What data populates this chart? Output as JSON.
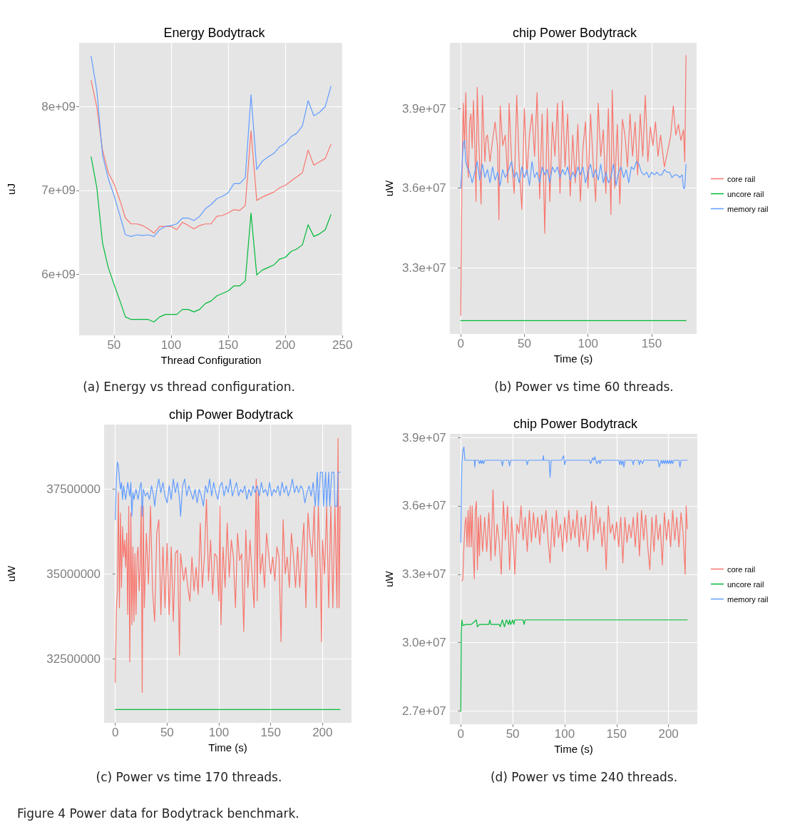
{
  "chart_data": [
    {
      "type": "line",
      "title": "Energy Bodytrack",
      "xlabel": "Thread Configuration",
      "ylabel": "uJ",
      "xlim": [
        19.5,
        250.5
      ],
      "xticks": [
        50,
        100,
        150,
        200,
        250
      ],
      "ylim": [
        5270000000.0,
        8760000000.0
      ],
      "yticks": [
        {
          "value": 6000000000.0,
          "label": "6e+09"
        },
        {
          "value": 7000000000.0,
          "label": "7e+09"
        },
        {
          "value": 8000000000.0,
          "label": "8e+09"
        }
      ],
      "grid": true,
      "legend": false,
      "annotations": [
        "(a)  Energy vs thread configuration."
      ],
      "series": [
        {
          "color": "#f8766d",
          "x": [
            30,
            35,
            40,
            45,
            50,
            55,
            60,
            65,
            70,
            75,
            80,
            85,
            90,
            95,
            100,
            105,
            110,
            115,
            120,
            125,
            130,
            135,
            140,
            145,
            150,
            155,
            160,
            165,
            170,
            175,
            180,
            185,
            190,
            195,
            200,
            205,
            210,
            215,
            220,
            225,
            230,
            235,
            240
          ],
          "values": [
            8310000000.0,
            7990000000.0,
            7480000000.0,
            7210000000.0,
            7080000000.0,
            6890000000.0,
            6670000000.0,
            6600000000.0,
            6600000000.0,
            6580000000.0,
            6540000000.0,
            6490000000.0,
            6570000000.0,
            6570000000.0,
            6570000000.0,
            6530000000.0,
            6620000000.0,
            6580000000.0,
            6540000000.0,
            6580000000.0,
            6600000000.0,
            6600000000.0,
            6690000000.0,
            6700000000.0,
            6730000000.0,
            6770000000.0,
            6760000000.0,
            6820000000.0,
            7710000000.0,
            6880000000.0,
            6920000000.0,
            6950000000.0,
            6980000000.0,
            7030000000.0,
            7060000000.0,
            7110000000.0,
            7160000000.0,
            7210000000.0,
            7480000000.0,
            7300000000.0,
            7340000000.0,
            7380000000.0,
            7550000000.0
          ]
        },
        {
          "color": "#00ba38",
          "x": [
            30,
            35,
            40,
            45,
            50,
            55,
            60,
            65,
            70,
            75,
            80,
            85,
            90,
            95,
            100,
            105,
            110,
            115,
            120,
            125,
            130,
            135,
            140,
            145,
            150,
            155,
            160,
            165,
            170,
            175,
            180,
            185,
            190,
            195,
            200,
            205,
            210,
            215,
            220,
            225,
            230,
            235,
            240
          ],
          "values": [
            7400000000.0,
            7030000000.0,
            6370000000.0,
            6080000000.0,
            5880000000.0,
            5690000000.0,
            5490000000.0,
            5460000000.0,
            5460000000.0,
            5460000000.0,
            5460000000.0,
            5430000000.0,
            5490000000.0,
            5520000000.0,
            5520000000.0,
            5520000000.0,
            5580000000.0,
            5580000000.0,
            5550000000.0,
            5580000000.0,
            5650000000.0,
            5680000000.0,
            5740000000.0,
            5770000000.0,
            5800000000.0,
            5860000000.0,
            5860000000.0,
            5920000000.0,
            6730000000.0,
            5990000000.0,
            6050000000.0,
            6080000000.0,
            6110000000.0,
            6180000000.0,
            6200000000.0,
            6270000000.0,
            6300000000.0,
            6350000000.0,
            6590000000.0,
            6450000000.0,
            6480000000.0,
            6530000000.0,
            6710000000.0
          ]
        },
        {
          "color": "#619cff",
          "x": [
            30,
            35,
            40,
            45,
            50,
            55,
            60,
            65,
            70,
            75,
            80,
            85,
            90,
            95,
            100,
            105,
            110,
            115,
            120,
            125,
            130,
            135,
            140,
            145,
            150,
            155,
            160,
            165,
            170,
            175,
            180,
            185,
            190,
            195,
            200,
            205,
            210,
            215,
            220,
            225,
            230,
            235,
            240
          ],
          "values": [
            8600000000.0,
            8190000000.0,
            7420000000.0,
            7140000000.0,
            6940000000.0,
            6710000000.0,
            6470000000.0,
            6450000000.0,
            6470000000.0,
            6460000000.0,
            6470000000.0,
            6450000000.0,
            6530000000.0,
            6570000000.0,
            6580000000.0,
            6600000000.0,
            6670000000.0,
            6670000000.0,
            6640000000.0,
            6690000000.0,
            6780000000.0,
            6830000000.0,
            6900000000.0,
            6930000000.0,
            6970000000.0,
            7080000000.0,
            7080000000.0,
            7150000000.0,
            8140000000.0,
            7250000000.0,
            7350000000.0,
            7400000000.0,
            7440000000.0,
            7520000000.0,
            7560000000.0,
            7640000000.0,
            7680000000.0,
            7770000000.0,
            8070000000.0,
            7890000000.0,
            7930000000.0,
            8000000000.0,
            8240000000.0
          ]
        }
      ]
    },
    {
      "type": "line",
      "title": "chip Power Bodytrack",
      "xlabel": "Time (s)",
      "ylabel": "uW",
      "xlim": [
        -8.6,
        185.3
      ],
      "xticks": [
        0,
        50,
        100,
        150
      ],
      "ylim": [
        30500000.0,
        41480000.0
      ],
      "yticks": [
        {
          "value": 33000000.0,
          "label": "3.3e+07"
        },
        {
          "value": 36000000.0,
          "label": "3.6e+07"
        },
        {
          "value": 39000000.0,
          "label": "3.9e+07"
        }
      ],
      "grid": true,
      "legend": "right",
      "annotations": [
        "(b)  Power vs time 60 threads."
      ],
      "series": [
        {
          "name": "core rail",
          "color": "#f8766d",
          "x": [
            0,
            1,
            2,
            3,
            4,
            5,
            6,
            7,
            8,
            9,
            10,
            11,
            12,
            13,
            14,
            16,
            17,
            19,
            20,
            21,
            23,
            25,
            27,
            29,
            30,
            31,
            33,
            35,
            37,
            38,
            40,
            42,
            44,
            46,
            48,
            50,
            52,
            54,
            56,
            58,
            60,
            62,
            64,
            66,
            68,
            70,
            72,
            74,
            76,
            78,
            80,
            82,
            84,
            86,
            88,
            90,
            92,
            94,
            96,
            98,
            100,
            102,
            104,
            106,
            108,
            110,
            112,
            114,
            116,
            118,
            119,
            121,
            123,
            125,
            127,
            129,
            131,
            133,
            135,
            137,
            139,
            141,
            143,
            145,
            147,
            149,
            151,
            153,
            155,
            157,
            160,
            163,
            165,
            167,
            169,
            171,
            173,
            175,
            176,
            177
          ],
          "values": [
            31200000.0,
            36500000.0,
            39200000.0,
            37500000.0,
            39600000.0,
            37200000.0,
            36400000.0,
            38500000.0,
            38800000.0,
            37500000.0,
            39300000.0,
            37800000.0,
            35500000.0,
            39800000.0,
            38000000.0,
            35400000.0,
            39500000.0,
            37000000.0,
            37900000.0,
            38000000.0,
            37000000.0,
            37800000.0,
            38500000.0,
            37500000.0,
            34800000.0,
            39100000.0,
            37600000.0,
            38000000.0,
            36200000.0,
            39200000.0,
            37000000.0,
            35800000.0,
            39500000.0,
            36800000.0,
            35200000.0,
            39000000.0,
            36500000.0,
            38000000.0,
            38800000.0,
            37200000.0,
            39600000.0,
            35600000.0,
            38800000.0,
            34300000.0,
            39000000.0,
            35500000.0,
            38500000.0,
            37200000.0,
            39200000.0,
            35800000.0,
            39300000.0,
            36800000.0,
            38800000.0,
            35700000.0,
            38000000.0,
            36200000.0,
            38400000.0,
            35500000.0,
            37500000.0,
            38500000.0,
            36000000.0,
            38800000.0,
            37000000.0,
            35500000.0,
            39200000.0,
            37200000.0,
            38200000.0,
            35800000.0,
            39000000.0,
            35000000.0,
            39700000.0,
            36000000.0,
            38400000.0,
            35400000.0,
            38600000.0,
            38000000.0,
            36800000.0,
            38800000.0,
            37200000.0,
            38500000.0,
            36500000.0,
            38800000.0,
            37200000.0,
            39500000.0,
            37000000.0,
            38300000.0,
            37600000.0,
            38500000.0,
            37200000.0,
            38000000.0,
            36800000.0,
            37500000.0,
            38000000.0,
            39100000.0,
            38000000.0,
            38400000.0,
            37800000.0,
            38200000.0,
            37000000.0,
            41000000.0
          ]
        },
        {
          "name": "uncore rail",
          "color": "#00ba38",
          "x": [
            0,
            177
          ],
          "values": [
            31000000.0,
            31000000.0
          ]
        },
        {
          "name": "memory rail",
          "color": "#619cff",
          "x": [
            0,
            2,
            3,
            4,
            5,
            7,
            9,
            11,
            13,
            15,
            17,
            19,
            21,
            23,
            25,
            27,
            29,
            31,
            33,
            35,
            37,
            40,
            42,
            44,
            46,
            48,
            50,
            52,
            54,
            56,
            58,
            60,
            62,
            64,
            66,
            68,
            70,
            72,
            74,
            76,
            78,
            80,
            82,
            84,
            86,
            88,
            90,
            92,
            94,
            96,
            98,
            100,
            102,
            104,
            106,
            108,
            110,
            112,
            114,
            116,
            118,
            120,
            122,
            124,
            126,
            128,
            130,
            132,
            134,
            136,
            138,
            140,
            142,
            144,
            146,
            148,
            150,
            152,
            154,
            156,
            158,
            160,
            162,
            164,
            166,
            168,
            170,
            172,
            174,
            175,
            176,
            177
          ],
          "values": [
            36000000.0,
            37700000.0,
            37800000.0,
            37000000.0,
            36800000.0,
            36600000.0,
            36200000.0,
            36600000.0,
            37000000.0,
            36300000.0,
            36900000.0,
            36400000.0,
            36700000.0,
            36200000.0,
            36800000.0,
            36300000.0,
            36600000.0,
            36100000.0,
            36700000.0,
            36400000.0,
            36600000.0,
            37000000.0,
            36400000.0,
            36600000.0,
            36200000.0,
            36800000.0,
            36400000.0,
            36700000.0,
            36100000.0,
            37000000.0,
            36400000.0,
            36600000.0,
            36200000.0,
            36800000.0,
            36500000.0,
            36700000.0,
            36200000.0,
            36800000.0,
            36600000.0,
            36800000.0,
            36400000.0,
            36700000.0,
            36500000.0,
            36800000.0,
            36300000.0,
            36600000.0,
            36400000.0,
            36800000.0,
            36500000.0,
            36800000.0,
            36200000.0,
            36600000.0,
            36900000.0,
            36400000.0,
            36700000.0,
            36300000.0,
            36900000.0,
            36200000.0,
            36600000.0,
            36200000.0,
            36400000.0,
            36900000.0,
            36100000.0,
            36600000.0,
            36800000.0,
            36400000.0,
            36700000.0,
            36200000.0,
            36800000.0,
            36700000.0,
            37000000.0,
            36900000.0,
            36600000.0,
            36500000.0,
            36600000.0,
            36400000.0,
            36600000.0,
            36500000.0,
            36600000.0,
            36500000.0,
            36500000.0,
            36700000.0,
            36600000.0,
            36600000.0,
            36400000.0,
            36500000.0,
            36500000.0,
            36400000.0,
            36500000.0,
            36000000.0,
            36000000.0,
            36900000.0
          ]
        }
      ]
    },
    {
      "type": "line",
      "title": "chip Power Bodytrack",
      "xlabel": "Time (s)",
      "ylabel": "uW",
      "xlim": [
        -10.8,
        228
      ],
      "xticks": [
        0,
        50,
        100,
        150,
        200
      ],
      "ylim": [
        30607000.0,
        39407000.0
      ],
      "yticks": [
        32500000,
        35000000,
        37500000
      ],
      "grid": true,
      "legend": false,
      "annotations": [
        "(c)  Power vs time 170 threads."
      ],
      "series": [
        {
          "color": "#f8766d",
          "x": [
            0,
            1,
            2,
            3,
            4,
            5,
            6,
            7,
            8,
            9,
            10,
            11,
            12,
            13,
            14,
            15,
            16,
            17,
            18,
            19,
            20,
            21,
            22,
            23,
            24,
            25,
            26,
            27,
            28,
            30,
            32,
            34,
            36,
            38,
            40,
            42,
            44,
            46,
            48,
            50,
            52,
            54,
            56,
            58,
            60,
            62,
            63,
            66,
            68,
            70,
            72,
            74,
            76,
            78,
            80,
            82,
            84,
            86,
            88,
            90,
            92,
            94,
            96,
            98,
            100,
            101,
            102,
            104,
            106,
            108,
            110,
            112,
            114,
            116,
            118,
            120,
            122,
            124,
            126,
            128,
            130,
            132,
            134,
            136,
            137,
            138,
            140,
            142,
            144,
            146,
            148,
            150,
            152,
            154,
            156,
            158,
            160,
            162,
            164,
            166,
            168,
            170,
            172,
            174,
            176,
            178,
            180,
            182,
            184,
            186,
            188,
            190,
            192,
            194,
            196,
            198,
            199,
            200,
            202,
            204,
            206,
            208,
            210,
            212,
            214,
            215,
            216,
            217
          ],
          "values": [
            31800000.0,
            33900000.0,
            34500000.0,
            37400000.0,
            34000000.0,
            36800000.0,
            34600000.0,
            36400000.0,
            35500000.0,
            36000000.0,
            35200000.0,
            36200000.0,
            33800000.0,
            37000000.0,
            32400000.0,
            36800000.0,
            33500000.0,
            35800000.0,
            33600000.0,
            35600000.0,
            33800000.0,
            35500000.0,
            35800000.0,
            34500000.0,
            35200000.0,
            37000000.0,
            31500000.0,
            37000000.0,
            34000000.0,
            36200000.0,
            34700000.0,
            37000000.0,
            34500000.0,
            33600000.0,
            36200000.0,
            36600000.0,
            33800000.0,
            35800000.0,
            34000000.0,
            35900000.0,
            33800000.0,
            35800000.0,
            33600000.0,
            35600000.0,
            35700000.0,
            32600000.0,
            35600000.0,
            34800000.0,
            35200000.0,
            34600000.0,
            34200000.0,
            35500000.0,
            34500000.0,
            35200000.0,
            34400000.0,
            36500000.0,
            34600000.0,
            35500000.0,
            37200000.0,
            34800000.0,
            36000000.0,
            34400000.0,
            35600000.0,
            35500000.0,
            34200000.0,
            37000000.0,
            33500000.0,
            35800000.0,
            34600000.0,
            36500000.0,
            34900000.0,
            36000000.0,
            35500000.0,
            34000000.0,
            36200000.0,
            35400000.0,
            35600000.0,
            33300000.0,
            36300000.0,
            34600000.0,
            36000000.0,
            35000000.0,
            34000000.0,
            37800000.0,
            34200000.0,
            37500000.0,
            35000000.0,
            35600000.0,
            34600000.0,
            36200000.0,
            35600000.0,
            35000000.0,
            35500000.0,
            34800000.0,
            35800000.0,
            35500000.0,
            33000000.0,
            36600000.0,
            35000000.0,
            35500000.0,
            34600000.0,
            36200000.0,
            35500000.0,
            34600000.0,
            35800000.0,
            34600000.0,
            35600000.0,
            36500000.0,
            34000000.0,
            36800000.0,
            36000000.0,
            35500000.0,
            37000000.0,
            34000000.0,
            37000000.0,
            35000000.0,
            33000000.0,
            36000000.0,
            35000000.0,
            37000000.0,
            34000000.0,
            37000000.0,
            34000000.0,
            37000000.0,
            34000000.0,
            39000000.0,
            34000000.0,
            37000000.0
          ]
        },
        {
          "color": "#00ba38",
          "x": [
            0,
            217
          ],
          "values": [
            31000000.0,
            31000000.0
          ]
        },
        {
          "color": "#619cff",
          "x": [
            0,
            1,
            2,
            3,
            4,
            5,
            6,
            7,
            8,
            10,
            12,
            14,
            15,
            16,
            17,
            18,
            20,
            22,
            24,
            25,
            26,
            27,
            29,
            31,
            33,
            35,
            37,
            38,
            40,
            42,
            44,
            46,
            48,
            50,
            52,
            54,
            56,
            58,
            60,
            62,
            63,
            65,
            67,
            69,
            71,
            73,
            75,
            77,
            79,
            81,
            83,
            85,
            87,
            89,
            91,
            93,
            95,
            97,
            99,
            101,
            103,
            105,
            107,
            109,
            111,
            113,
            115,
            117,
            119,
            121,
            123,
            125,
            127,
            129,
            131,
            133,
            135,
            137,
            139,
            141,
            143,
            145,
            147,
            149,
            151,
            153,
            155,
            157,
            159,
            161,
            163,
            165,
            167,
            169,
            171,
            173,
            175,
            177,
            179,
            181,
            183,
            185,
            187,
            189,
            191,
            193,
            195,
            196,
            198,
            200,
            201,
            203,
            204,
            206,
            207,
            209,
            211,
            212,
            214,
            215,
            217
          ],
          "values": [
            36600000.0,
            37800000.0,
            38300000.0,
            38200000.0,
            37800000.0,
            37500000.0,
            37700000.0,
            37200000.0,
            37600000.0,
            37200000.0,
            37700000.0,
            37300000.0,
            37700000.0,
            36700000.0,
            37400000.0,
            37200000.0,
            37500000.0,
            37200000.0,
            37600000.0,
            37700000.0,
            36700000.0,
            37500000.0,
            37300000.0,
            37400000.0,
            37200000.0,
            37600000.0,
            37300000.0,
            37000000.0,
            37500000.0,
            37800000.0,
            37400000.0,
            37700000.0,
            37300000.0,
            37100000.0,
            37600000.0,
            37200000.0,
            37800000.0,
            37400000.0,
            37700000.0,
            37200000.0,
            36700000.0,
            37600000.0,
            37800000.0,
            37300000.0,
            37600000.0,
            37400000.0,
            37200000.0,
            37500000.0,
            37100000.0,
            37500000.0,
            37300000.0,
            37000000.0,
            37600000.0,
            37400000.0,
            37800000.0,
            37300000.0,
            37700000.0,
            37400000.0,
            37200000.0,
            37600000.0,
            37700000.0,
            37300000.0,
            37600000.0,
            37400000.0,
            37800000.0,
            37300000.0,
            37500000.0,
            37700000.0,
            37300000.0,
            37500000.0,
            37400000.0,
            37600000.0,
            37200000.0,
            37500000.0,
            37300000.0,
            37600000.0,
            37400000.0,
            37600000.0,
            37300000.0,
            37700000.0,
            37400000.0,
            37500000.0,
            37300000.0,
            37700000.0,
            37300000.0,
            37500000.0,
            37400000.0,
            37600000.0,
            37300000.0,
            37700000.0,
            37400000.0,
            37600000.0,
            37300000.0,
            37500000.0,
            37800000.0,
            37400000.0,
            37600000.0,
            37400000.0,
            37600000.0,
            37500000.0,
            37100000.0,
            37400000.0,
            37600000.0,
            37300000.0,
            37700000.0,
            37000000.0,
            38000000.0,
            37000000.0,
            38000000.0,
            38000000.0,
            37000000.0,
            38000000.0,
            37000000.0,
            38000000.0,
            37000000.0,
            38000000.0,
            38000000.0,
            37000000.0,
            37000000.0,
            38000000.0,
            38000000.0
          ]
        }
      ]
    },
    {
      "type": "line",
      "title": "chip Power Bodytrack",
      "xlabel": "Time (s)",
      "ylabel": "uW",
      "xlim": [
        -10.6,
        227.7
      ],
      "xticks": [
        0,
        50,
        100,
        150,
        200
      ],
      "ylim": [
        26426000.0,
        39157000.0
      ],
      "yticks": [
        {
          "value": 27000000.0,
          "label": "2.7e+07"
        },
        {
          "value": 30000000.0,
          "label": "3.0e+07"
        },
        {
          "value": 33000000.0,
          "label": "3.3e+07"
        },
        {
          "value": 36000000.0,
          "label": "3.6e+07"
        },
        {
          "value": 39000000.0,
          "label": "3.9e+07"
        }
      ],
      "grid": true,
      "legend": "right",
      "annotations": [
        "(d)  Power vs time 240 threads.",
        "Figure 4  Power data for Bodytrack benchmark."
      ],
      "series": [
        {
          "name": "core rail",
          "color": "#f8766d",
          "x": [
            1,
            2,
            3,
            4,
            5,
            6,
            7,
            8,
            9,
            10,
            11,
            12,
            13,
            14,
            15,
            16,
            17,
            18,
            19,
            21,
            23,
            25,
            27,
            29,
            31,
            33,
            35,
            37,
            39,
            41,
            43,
            45,
            47,
            49,
            51,
            52,
            54,
            56,
            58,
            60,
            62,
            64,
            66,
            68,
            70,
            72,
            74,
            76,
            78,
            80,
            82,
            84,
            86,
            88,
            90,
            92,
            94,
            96,
            98,
            100,
            102,
            104,
            106,
            108,
            110,
            112,
            114,
            116,
            118,
            120,
            122,
            124,
            126,
            128,
            130,
            132,
            134,
            136,
            138,
            140,
            142,
            144,
            146,
            148,
            150,
            152,
            154,
            156,
            158,
            160,
            162,
            164,
            166,
            168,
            170,
            172,
            174,
            176,
            178,
            180,
            182,
            184,
            186,
            188,
            190,
            192,
            194,
            196,
            198,
            200,
            202,
            204,
            206,
            208,
            210,
            212,
            214,
            216,
            217,
            218
          ],
          "values": [
            32700000.0,
            32800000.0,
            34200000.0,
            35200000.0,
            35500000.0,
            34200000.0,
            35800000.0,
            34200000.0,
            36000000.0,
            34200000.0,
            36000000.0,
            34000000.0,
            32800000.0,
            35800000.0,
            36200000.0,
            33200000.0,
            35500000.0,
            33800000.0,
            35600000.0,
            34000000.0,
            35500000.0,
            34000000.0,
            35700000.0,
            33600000.0,
            36700000.0,
            33800000.0,
            35200000.0,
            34400000.0,
            33000000.0,
            36200000.0,
            34500000.0,
            36000000.0,
            33200000.0,
            35500000.0,
            34000000.0,
            33000000.0,
            35200000.0,
            34800000.0,
            36000000.0,
            34500000.0,
            35500000.0,
            34000000.0,
            35800000.0,
            34400000.0,
            35700000.0,
            34600000.0,
            35500000.0,
            34300000.0,
            35600000.0,
            34800000.0,
            35800000.0,
            34500000.0,
            33500000.0,
            35500000.0,
            34200000.0,
            35800000.0,
            34600000.0,
            35200000.0,
            34000000.0,
            35500000.0,
            34400000.0,
            35800000.0,
            34500000.0,
            35400000.0,
            34600000.0,
            35800000.0,
            34200000.0,
            35500000.0,
            34500000.0,
            35600000.0,
            34000000.0,
            35000000.0,
            36200000.0,
            34500000.0,
            36000000.0,
            34800000.0,
            35500000.0,
            34200000.0,
            35300000.0,
            33200000.0,
            36000000.0,
            34800000.0,
            35200000.0,
            34500000.0,
            35300000.0,
            34200000.0,
            35500000.0,
            33500000.0,
            35500000.0,
            34400000.0,
            35200000.0,
            34600000.0,
            35500000.0,
            34200000.0,
            35700000.0,
            33800000.0,
            35800000.0,
            34500000.0,
            35600000.0,
            34200000.0,
            33200000.0,
            35500000.0,
            34000000.0,
            35600000.0,
            34500000.0,
            35200000.0,
            33400000.0,
            35700000.0,
            34500000.0,
            35400000.0,
            34200000.0,
            35800000.0,
            34500000.0,
            35500000.0,
            34200000.0,
            35700000.0,
            34800000.0,
            33000000.0,
            36000000.0,
            35000000.0
          ]
        },
        {
          "name": "uncore rail",
          "color": "#00ba38",
          "x": [
            0,
            0.5,
            1,
            2,
            5,
            10,
            15,
            16,
            18,
            27,
            28,
            29,
            37,
            38,
            40,
            42,
            44,
            46,
            47,
            48,
            50,
            51,
            52,
            60,
            61,
            62,
            218
          ],
          "values": [
            27000000.0,
            30400000.0,
            31000000.0,
            30750000.0,
            30800000.0,
            30800000.0,
            31000000.0,
            30700000.0,
            30800000.0,
            30800000.0,
            31000000.0,
            30800000.0,
            30800000.0,
            30700000.0,
            31000000.0,
            30700000.0,
            31000000.0,
            30800000.0,
            31000000.0,
            30800000.0,
            31000000.0,
            30800000.0,
            31000000.0,
            31000000.0,
            30800000.0,
            31000000.0,
            31000000.0
          ]
        },
        {
          "name": "memory rail",
          "color": "#619cff",
          "x": [
            0,
            1,
            2,
            3,
            4,
            13,
            13.5,
            14,
            17,
            18,
            19,
            20,
            21,
            22,
            23,
            39,
            40,
            41,
            46,
            47,
            48,
            63,
            64,
            65,
            79,
            79.5,
            80,
            85,
            86,
            87,
            97,
            99,
            100,
            101,
            124,
            125,
            127,
            128,
            129,
            130,
            131,
            133,
            134,
            135,
            152,
            153,
            154,
            155,
            156,
            157,
            158,
            165,
            166,
            167,
            171,
            172,
            173,
            175,
            176,
            190,
            191,
            193,
            194,
            195,
            196,
            197,
            198,
            199,
            200,
            201,
            202,
            203,
            204,
            205,
            210,
            211,
            212,
            218
          ],
          "values": [
            34400000.0,
            37800000.0,
            38400000.0,
            38580000.0,
            38000000.0,
            38000000.0,
            37700000.0,
            38000000.0,
            38000000.0,
            37850000.0,
            38000000.0,
            37850000.0,
            38000000.0,
            37850000.0,
            38000000.0,
            38000000.0,
            37750000.0,
            38000000.0,
            38000000.0,
            37750000.0,
            38000000.0,
            38000000.0,
            37800000.0,
            38000000.0,
            38000000.0,
            38200000.0,
            38000000.0,
            38000000.0,
            37250000.0,
            38000000.0,
            38000000.0,
            38200000.0,
            37800000.0,
            38000000.0,
            38000000.0,
            37850000.0,
            38100000.0,
            38000000.0,
            38150000.0,
            38000000.0,
            37850000.0,
            38000000.0,
            37850000.0,
            38000000.0,
            38000000.0,
            37800000.0,
            38000000.0,
            37800000.0,
            38000000.0,
            37700000.0,
            38000000.0,
            38000000.0,
            37800000.0,
            38000000.0,
            38000000.0,
            37800000.0,
            38000000.0,
            37850000.0,
            38000000.0,
            38000000.0,
            37700000.0,
            38000000.0,
            37850000.0,
            38000000.0,
            37850000.0,
            38000000.0,
            37850000.0,
            38000000.0,
            37850000.0,
            38000000.0,
            37850000.0,
            38000000.0,
            37850000.0,
            38000000.0,
            38000000.0,
            37700000.0,
            38000000.0,
            38000000.0
          ]
        }
      ]
    }
  ]
}
